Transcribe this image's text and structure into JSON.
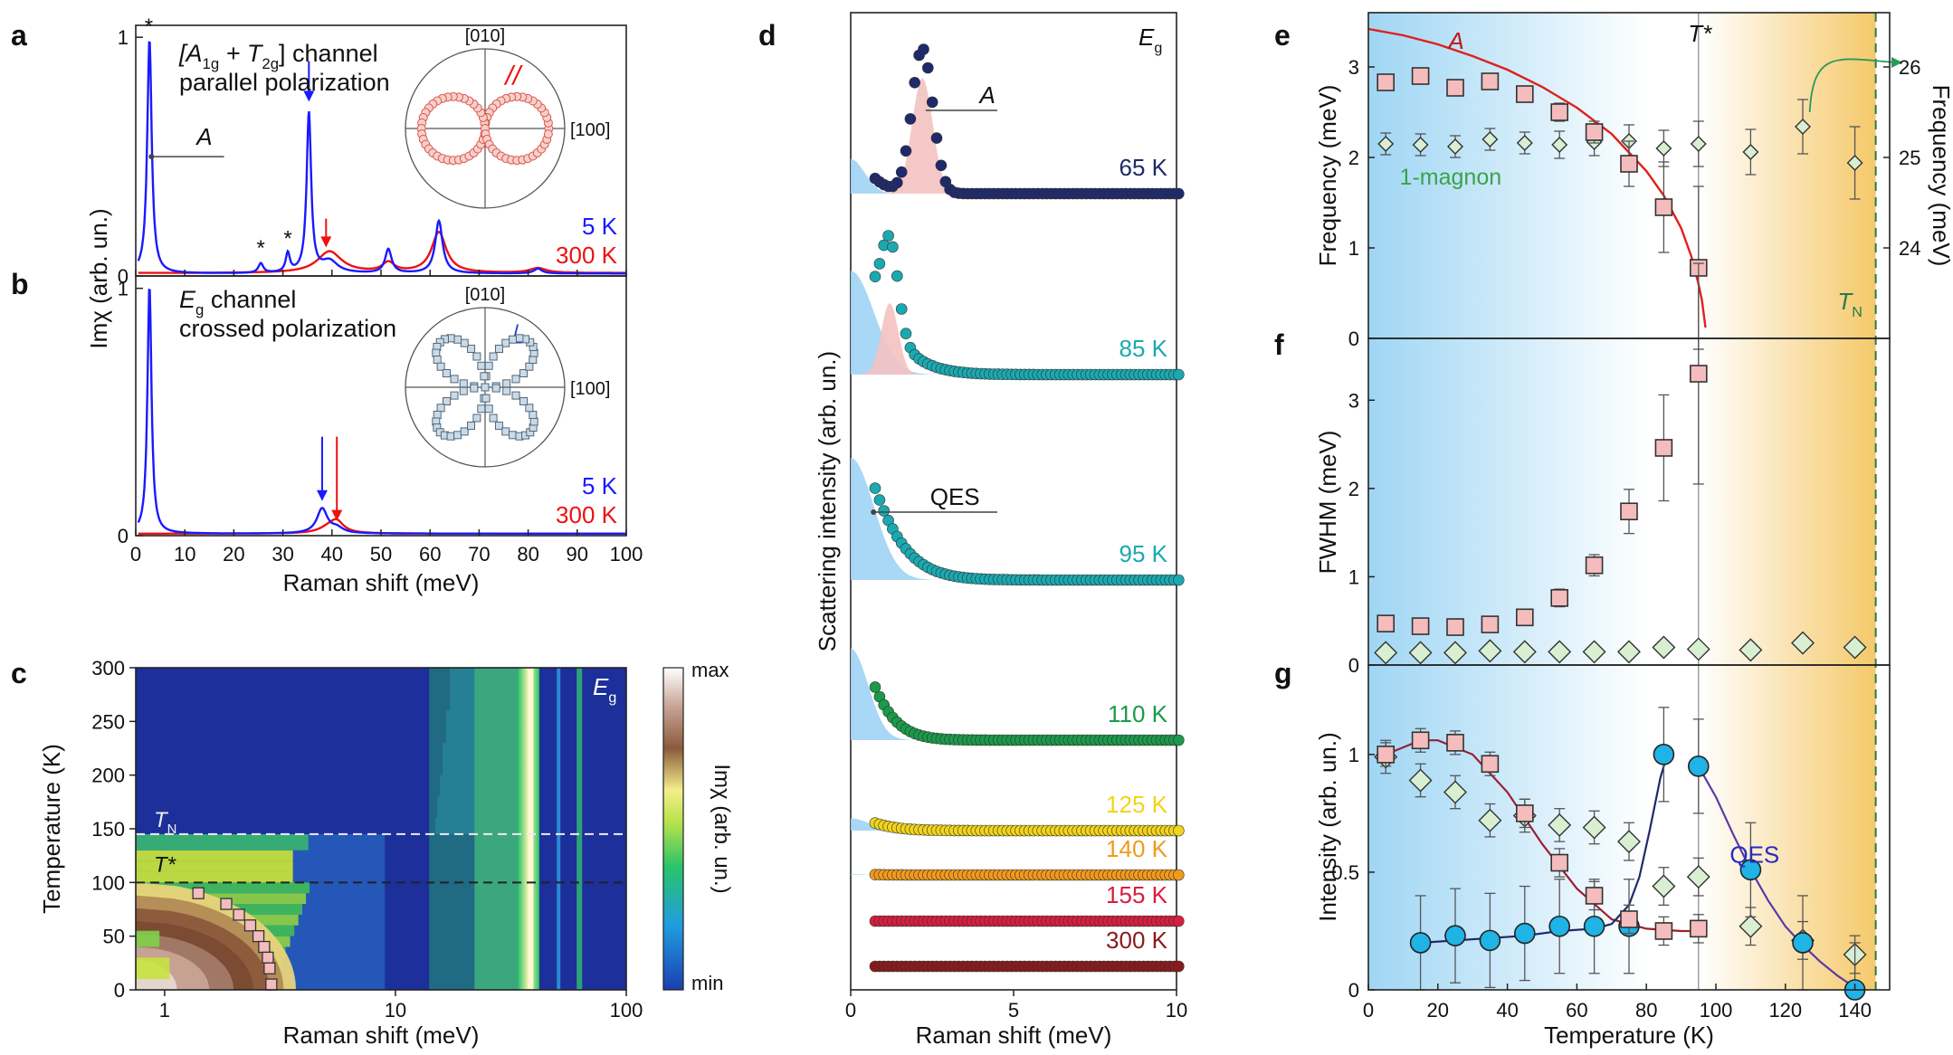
{
  "panel_labels": [
    "a",
    "b",
    "c",
    "d",
    "e",
    "f",
    "g"
  ],
  "colors": {
    "blue": "#1a1aff",
    "red": "#ee1111",
    "navy": "#1f2a6b",
    "teal": "#1aa9b0",
    "green": "#1a9a4a",
    "yellow": "#f2d41a",
    "orange": "#f29a1a",
    "crimson": "#d81e3c",
    "darkred": "#8a1a1a",
    "pink_fill": "#f4c2c2",
    "lightblue_fill": "#9fd4f4",
    "marker_pink": "#f4bcbc",
    "marker_green": "#d8efd2",
    "marker_cyan": "#1fb3e6",
    "qes_line": "#5a3aa8"
  },
  "chart_data": [
    {
      "panel": "a",
      "type": "line",
      "xlabel": "Raman shift (meV)",
      "ylabel": "Imχ (arb. un.)",
      "xlim": [
        0,
        100
      ],
      "ylim": [
        0,
        1.05
      ],
      "x_ticks": [
        0,
        10,
        20,
        30,
        40,
        50,
        60,
        70,
        80,
        90,
        100
      ],
      "y_ticks": [
        0,
        1
      ],
      "channel_text": [
        "[A",
        "1g",
        " + T",
        "2g",
        "] channel"
      ],
      "polarization_text": "parallel polarization",
      "peak_label": "A",
      "star": "*",
      "polar_inset": {
        "top_label": "[010]",
        "right_label": "[100]",
        "symbol": "//"
      },
      "series": [
        {
          "name": "5 K",
          "color": "#1a1aff",
          "baseline": 0.01,
          "peaks": [
            [
              2.8,
              0.98,
              0.55
            ],
            [
              25.5,
              0.04,
              0.6
            ],
            [
              31,
              0.08,
              0.5
            ],
            [
              35.3,
              0.67,
              0.55
            ],
            [
              39.5,
              0.05,
              2
            ],
            [
              51.5,
              0.1,
              0.8
            ],
            [
              61.8,
              0.22,
              0.9
            ],
            [
              82,
              0.02,
              1
            ]
          ]
        },
        {
          "name": "300 K",
          "color": "#ee1111",
          "baseline": 0.012,
          "peaks": [
            [
              39.5,
              0.09,
              3.0
            ],
            [
              51.5,
              0.04,
              1.5
            ],
            [
              61.8,
              0.17,
              1.8
            ],
            [
              82,
              0.02,
              2
            ]
          ]
        }
      ]
    },
    {
      "panel": "b",
      "type": "line",
      "xlabel": "Raman shift (meV)",
      "ylabel": "Imχ (arb. un.)",
      "xlim": [
        0,
        100
      ],
      "ylim": [
        0,
        1.05
      ],
      "x_ticks": [
        0,
        10,
        20,
        30,
        40,
        50,
        60,
        70,
        80,
        90,
        100
      ],
      "y_ticks": [
        0,
        1
      ],
      "channel_text": [
        "E",
        "g",
        " channel"
      ],
      "polarization_text": "crossed polarization",
      "polar_inset": {
        "top_label": "[010]",
        "right_label": "[100]",
        "symbol": "⊥"
      },
      "series": [
        {
          "name": "5 K",
          "color": "#1a1aff",
          "baseline": 0.008,
          "peaks": [
            [
              2.8,
              1.0,
              0.5
            ],
            [
              38,
              0.1,
              1.3
            ],
            [
              41,
              0.02,
              1.5
            ]
          ]
        },
        {
          "name": "300 K",
          "color": "#ee1111",
          "baseline": 0.008,
          "peaks": [
            [
              39.5,
              0.025,
              2.5
            ],
            [
              41,
              0.04,
              1.6
            ]
          ]
        }
      ]
    },
    {
      "panel": "c",
      "type": "heatmap",
      "xlabel": "Raman shift (meV)",
      "ylabel": "Temperature (K)",
      "x_scale": "log",
      "xlim": [
        0.75,
        100
      ],
      "ylim": [
        0,
        300
      ],
      "x_tick_labels": [
        "1",
        "10",
        "100"
      ],
      "x_tick_values": [
        1,
        10,
        100
      ],
      "y_ticks": [
        0,
        50,
        100,
        150,
        200,
        250,
        300
      ],
      "channel": [
        "E",
        "g"
      ],
      "TN_label": [
        "T",
        "N"
      ],
      "TN_value": 145,
      "Tstar_label": "T*",
      "Tstar_value": 100,
      "colorbar": {
        "max_label": "max",
        "min_label": "min",
        "label": "Imχ (arb. un.)"
      },
      "markers_x": [
        1.4,
        1.85,
        2.1,
        2.35,
        2.55,
        2.7,
        2.8,
        2.85,
        2.9
      ],
      "markers_y": [
        90,
        80,
        70,
        60,
        50,
        40,
        30,
        20,
        5
      ]
    },
    {
      "panel": "d",
      "type": "scatter",
      "xlabel": "Raman shift (meV)",
      "ylabel": "Scattering intensity (arb. un.)",
      "xlim": [
        0,
        10
      ],
      "x_ticks": [
        0,
        5,
        10
      ],
      "channel": [
        "E",
        "g"
      ],
      "peak_label": "A",
      "qes_label": "QES",
      "series": [
        {
          "name": "65 K",
          "color": "#1f2a6b",
          "qes_amp": 0.32,
          "qes_w": 0.6,
          "a_amp": 1.0,
          "a_pos": 2.2,
          "a_w": 0.55
        },
        {
          "name": "85 K",
          "color": "#1aa9b0",
          "qes_amp": 0.85,
          "qes_w": 1.0,
          "a_amp": 0.55,
          "a_pos": 1.2,
          "a_w": 0.45
        },
        {
          "name": "95 K",
          "color": "#1aa9b0",
          "qes_amp": 1.0,
          "qes_w": 1.0,
          "a_amp": 0,
          "a_pos": 0,
          "a_w": 1
        },
        {
          "name": "110 K",
          "color": "#1a9a4a",
          "qes_amp": 0.9,
          "qes_w": 0.75,
          "a_amp": 0,
          "a_pos": 0,
          "a_w": 1
        },
        {
          "name": "125 K",
          "color": "#f2d41a",
          "qes_amp": 0.3,
          "qes_w": 0.8,
          "a_amp": 0,
          "a_pos": 0,
          "a_w": 1
        },
        {
          "name": "140 K",
          "color": "#f29a1a",
          "qes_amp": 0.05,
          "qes_w": 0.6,
          "a_amp": 0,
          "a_pos": 0,
          "a_w": 1
        },
        {
          "name": "155 K",
          "color": "#d81e3c",
          "qes_amp": 0,
          "qes_w": 1,
          "a_amp": 0,
          "a_pos": 0,
          "a_w": 1
        },
        {
          "name": "300 K",
          "color": "#8a1a1a",
          "qes_amp": 0,
          "qes_w": 1,
          "a_amp": 0,
          "a_pos": 0,
          "a_w": 1
        }
      ]
    },
    {
      "panel": "e",
      "type": "scatter",
      "ylabel": "Frequency (meV)",
      "y2label": "Frequency (meV)",
      "xlim": [
        0,
        150
      ],
      "ylim": [
        0,
        3.6
      ],
      "y_ticks": [
        0,
        1,
        2,
        3
      ],
      "y2lim": [
        23.0,
        26.6
      ],
      "y2_ticks": [
        24,
        25,
        26
      ],
      "A_label": "A",
      "magnon_label": "1-magnon",
      "Tstar_label": "T*",
      "TN_label": [
        "T",
        "N"
      ],
      "A_T": [
        5,
        15,
        25,
        35,
        45,
        55,
        65,
        75,
        85,
        95
      ],
      "A_freq": [
        2.83,
        2.9,
        2.77,
        2.84,
        2.7,
        2.5,
        2.28,
        1.93,
        1.45,
        0.78
      ],
      "A_err": [
        0.08,
        0.08,
        0.08,
        0.08,
        0.08,
        0.1,
        0.12,
        0.25,
        0.5,
        0.9
      ],
      "fit_T": [
        0,
        10,
        20,
        30,
        40,
        50,
        60,
        70,
        80,
        85,
        90,
        93,
        95,
        96,
        97
      ],
      "fit_freq": [
        3.42,
        3.35,
        3.25,
        3.12,
        2.97,
        2.78,
        2.55,
        2.26,
        1.85,
        1.58,
        1.22,
        0.9,
        0.6,
        0.42,
        0.12
      ],
      "magnon_T": [
        5,
        15,
        25,
        35,
        45,
        55,
        65,
        75,
        85,
        95,
        110,
        125,
        140
      ],
      "magnon_freq": [
        25.15,
        25.14,
        25.12,
        25.2,
        25.16,
        25.14,
        25.17,
        25.18,
        25.1,
        25.15,
        25.06,
        25.34,
        24.94
      ],
      "magnon_err": [
        0.12,
        0.12,
        0.12,
        0.12,
        0.12,
        0.15,
        0.15,
        0.18,
        0.2,
        0.25,
        0.25,
        0.3,
        0.4
      ]
    },
    {
      "panel": "f",
      "type": "scatter",
      "ylabel": "FWHM (meV)",
      "xlim": [
        0,
        150
      ],
      "ylim": [
        0,
        3.7
      ],
      "y_ticks": [
        0,
        1,
        2,
        3
      ],
      "A_T": [
        5,
        15,
        25,
        35,
        45,
        55,
        65,
        75,
        85,
        95
      ],
      "A_fwhm": [
        0.47,
        0.44,
        0.43,
        0.46,
        0.54,
        0.76,
        1.13,
        1.74,
        2.46,
        3.3
      ],
      "A_err": [
        0.08,
        0.08,
        0.08,
        0.08,
        0.08,
        0.1,
        0.12,
        0.25,
        0.6,
        1.25
      ],
      "magnon_T": [
        5,
        15,
        25,
        35,
        45,
        55,
        65,
        75,
        85,
        95,
        110,
        125,
        140
      ],
      "magnon_fwhm": [
        0.14,
        0.14,
        0.14,
        0.16,
        0.15,
        0.15,
        0.15,
        0.15,
        0.2,
        0.18,
        0.17,
        0.25,
        0.2
      ],
      "magnon_err": [
        0.04,
        0.04,
        0.04,
        0.04,
        0.04,
        0.04,
        0.04,
        0.04,
        0.04,
        0.04,
        0.05,
        0.05,
        0.05
      ]
    },
    {
      "panel": "g",
      "type": "scatter",
      "xlabel": "Temperature (K)",
      "ylabel": "Intensity (arb. un.)",
      "xlim": [
        0,
        150
      ],
      "ylim": [
        0,
        1.38
      ],
      "y_ticks": [
        0,
        0.5,
        1
      ],
      "x_ticks": [
        0,
        20,
        40,
        60,
        80,
        100,
        120,
        140
      ],
      "qes_label": "QES",
      "A_T": [
        5,
        15,
        25,
        35,
        45,
        55,
        65,
        75,
        85,
        95
      ],
      "A_int": [
        1.0,
        1.06,
        1.05,
        0.96,
        0.75,
        0.54,
        0.4,
        0.3,
        0.25,
        0.26
      ],
      "A_err": [
        0.05,
        0.05,
        0.05,
        0.05,
        0.06,
        0.06,
        0.06,
        0.06,
        0.06,
        0.06
      ],
      "A_fit_T": [
        5,
        15,
        20,
        30,
        40,
        50,
        60,
        70,
        80,
        90,
        95
      ],
      "A_fit_int": [
        1.0,
        1.06,
        1.06,
        1.0,
        0.84,
        0.62,
        0.43,
        0.3,
        0.26,
        0.25,
        0.25
      ],
      "magnon_T": [
        5,
        15,
        25,
        35,
        45,
        55,
        65,
        75,
        85,
        95,
        110,
        125,
        140
      ],
      "magnon_int": [
        0.99,
        0.89,
        0.84,
        0.72,
        0.74,
        0.7,
        0.69,
        0.63,
        0.44,
        0.48,
        0.27,
        0.21,
        0.15
      ],
      "magnon_err": [
        0.07,
        0.07,
        0.07,
        0.07,
        0.07,
        0.07,
        0.07,
        0.08,
        0.08,
        0.08,
        0.08,
        0.08,
        0.08
      ],
      "qes_T": [
        15,
        25,
        35,
        45,
        55,
        65,
        75,
        85,
        95,
        110,
        125,
        140
      ],
      "qes_int": [
        0.2,
        0.23,
        0.21,
        0.24,
        0.27,
        0.27,
        0.27,
        1.0,
        0.95,
        0.51,
        0.2,
        0.0
      ],
      "qes_err": [
        0.2,
        0.2,
        0.2,
        0.2,
        0.2,
        0.2,
        0.2,
        0.2,
        0.2,
        0.2,
        0.2,
        0.2
      ],
      "qes_fit1_T": [
        15,
        25,
        35,
        45,
        55,
        65,
        70,
        75,
        78,
        81,
        84,
        86
      ],
      "qes_fit1_int": [
        0.2,
        0.21,
        0.22,
        0.23,
        0.25,
        0.26,
        0.28,
        0.36,
        0.48,
        0.68,
        0.9,
        1.0
      ],
      "qes_fit2_T": [
        95,
        100,
        105,
        110,
        115,
        120,
        125,
        130,
        135,
        140
      ],
      "qes_fit2_int": [
        0.95,
        0.82,
        0.66,
        0.51,
        0.38,
        0.27,
        0.19,
        0.12,
        0.06,
        0.01
      ]
    }
  ]
}
